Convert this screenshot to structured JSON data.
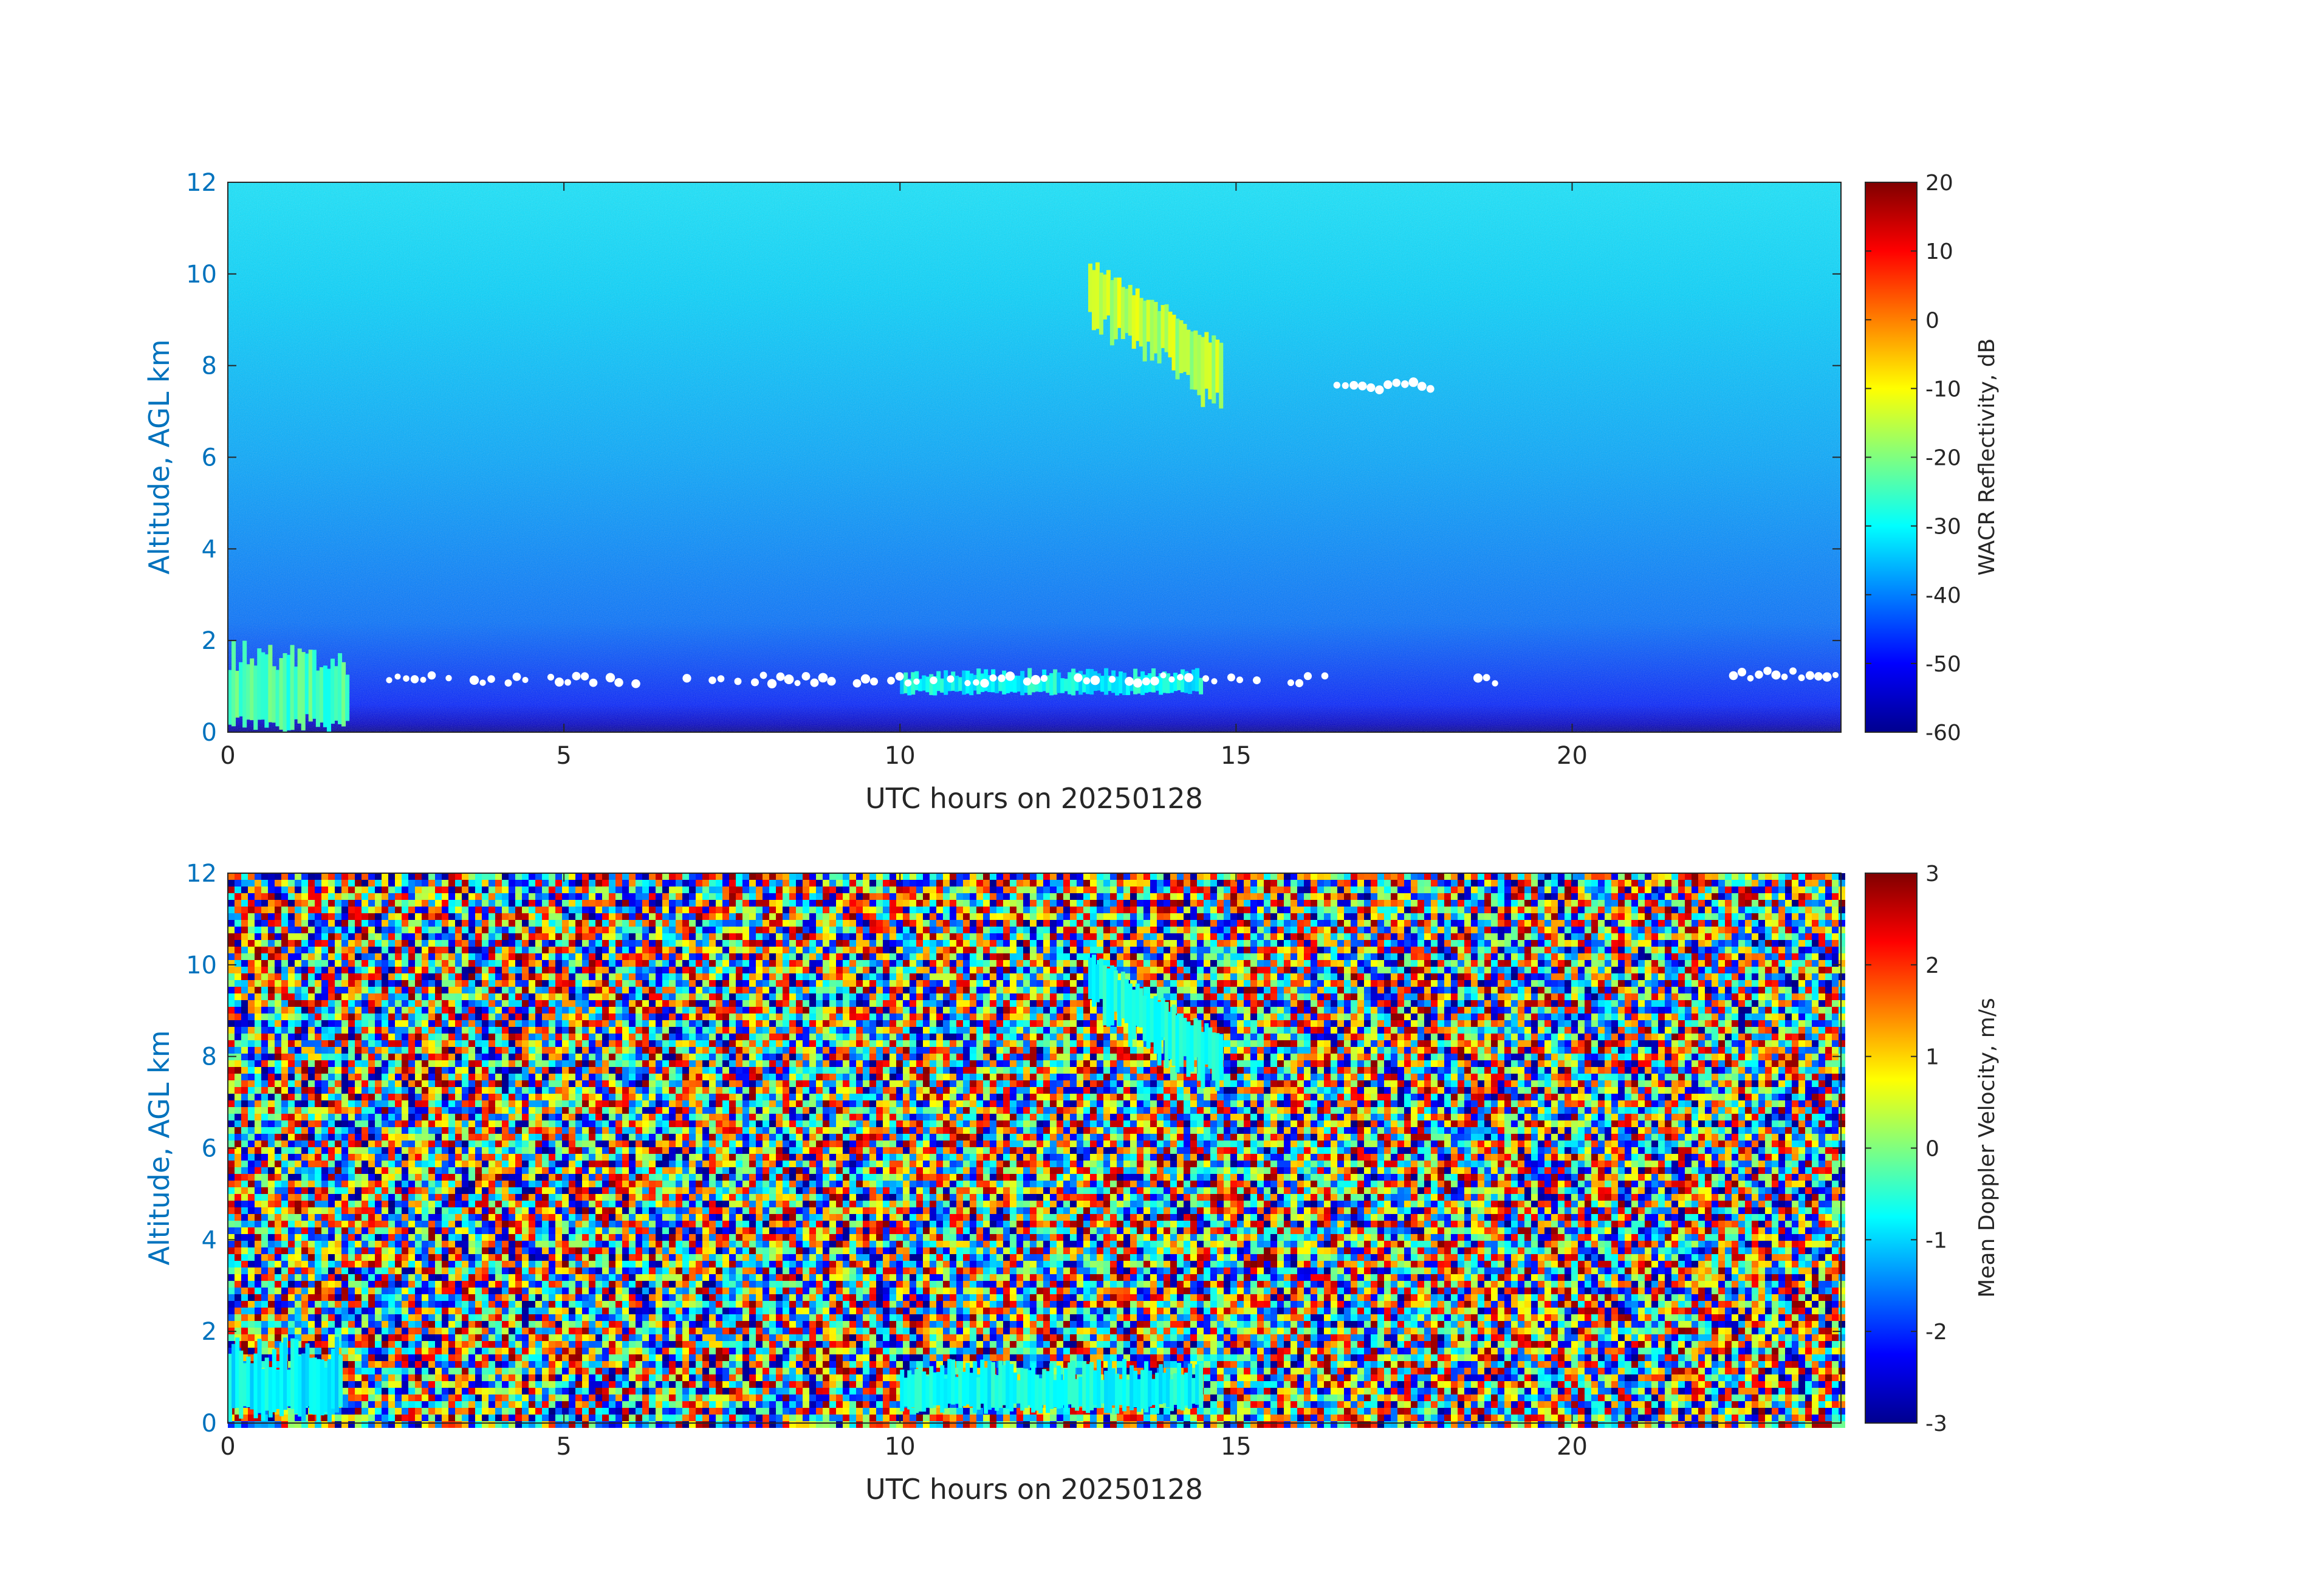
{
  "chart_data": [
    {
      "type": "heatmap",
      "title": "",
      "xlabel": "UTC hours on 20250128",
      "ylabel": "Altitude, AGL km",
      "xlim": [
        0,
        24
      ],
      "ylim": [
        0,
        12
      ],
      "xticks": [
        0,
        5,
        10,
        15,
        20
      ],
      "yticks": [
        0,
        2,
        4,
        6,
        8,
        10,
        12
      ],
      "colorbar": {
        "label": "WACR Reflectivity, dB",
        "range": [
          -60,
          20
        ],
        "ticks": [
          20,
          10,
          0,
          -10,
          -20,
          -30,
          -40,
          -50,
          -60
        ],
        "colormap": "jet"
      },
      "background": {
        "description_values_dB": {
          "surface": -60,
          "altitude_12km": -32
        }
      },
      "features": [
        {
          "name": "cirrus",
          "x_range": [
            12.8,
            14.8
          ],
          "y_range": [
            7.0,
            10.4
          ],
          "value": -15
        },
        {
          "name": "low_cloud",
          "x_range": [
            0.0,
            1.8
          ],
          "y_range": [
            0.0,
            2.0
          ],
          "value": -25
        },
        {
          "name": "boundary_layer_echo",
          "x_range": [
            10.0,
            14.5
          ],
          "y_range": [
            0.8,
            1.4
          ],
          "value": -30
        }
      ],
      "masked_points": [
        {
          "x_range": [
            16.5,
            17.9
          ],
          "y": 7.55
        },
        {
          "x_range": [
            2.4,
            16.4
          ],
          "y": 1.15
        },
        {
          "x_range": [
            18.6,
            18.9
          ],
          "y": 1.1
        },
        {
          "x_range": [
            22.4,
            24.0
          ],
          "y": 1.25
        }
      ]
    },
    {
      "type": "heatmap",
      "title": "",
      "xlabel": "UTC hours on 20250128",
      "ylabel": "Altitude, AGL km",
      "xlim": [
        0,
        24
      ],
      "ylim": [
        0,
        12
      ],
      "xticks": [
        0,
        5,
        10,
        15,
        20
      ],
      "yticks": [
        0,
        2,
        4,
        6,
        8,
        10,
        12
      ],
      "colorbar": {
        "label": "Mean Doppler Velocity, m/s",
        "range": [
          -3,
          3
        ],
        "ticks": [
          3,
          2,
          1,
          0,
          -1,
          -2,
          -3
        ],
        "colormap": "jet"
      },
      "background": {
        "pattern": "random noise",
        "range": [
          -3,
          3
        ]
      },
      "features": [
        {
          "name": "cirrus",
          "x_range": [
            12.8,
            14.8
          ],
          "y_range": [
            7.0,
            10.3
          ],
          "value": -0.6
        },
        {
          "name": "low_cloud",
          "x_range": [
            0.0,
            1.7
          ],
          "y_range": [
            0.0,
            1.9
          ],
          "value": -0.8
        },
        {
          "name": "boundary_layer_echo",
          "x_range": [
            10.0,
            14.5
          ],
          "y_range": [
            0.2,
            1.4
          ],
          "value": -0.7
        }
      ]
    }
  ]
}
